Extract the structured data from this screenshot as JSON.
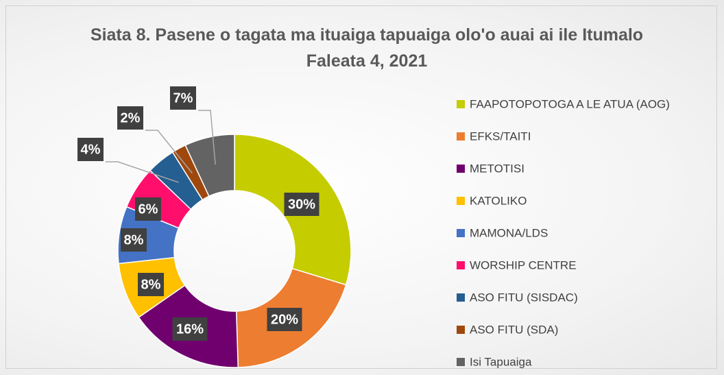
{
  "chart_data": {
    "type": "donut",
    "title": "Siata 8. Pasene o tagata ma ituaiga tapuaiga olo'o auai ai ile Itumalo Faleata 4, 2021",
    "categories": [
      "FAAPOTOPOTOGA A LE ATUA (AOG)",
      "EFKS/TAITI",
      "METOTISI",
      "KATOLIKO",
      "MAMONA/LDS",
      "WORSHIP CENTRE",
      "ASO FITU  (SISDAC)",
      "ASO FITU (SDA)",
      "Isi Tapuaiga"
    ],
    "values": [
      30,
      20,
      16,
      8,
      8,
      6,
      4,
      2,
      7
    ],
    "value_labels": [
      "30%",
      "20%",
      "16%",
      "8%",
      "8%",
      "6%",
      "4%",
      "2%",
      "7%"
    ],
    "colors": [
      "#c5cc00",
      "#ed7d31",
      "#70006e",
      "#ffc000",
      "#4472c4",
      "#ff0f6b",
      "#255e91",
      "#9e480e",
      "#636363"
    ],
    "legend": "right"
  }
}
